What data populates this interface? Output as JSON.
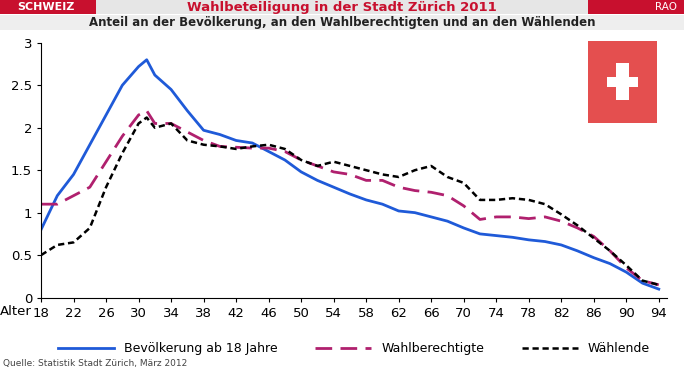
{
  "chart_data": {
    "type": "line",
    "header": "SCHWEIZ",
    "title": "Wahlbeteiligung in der Stadt Zürich 2011",
    "credit": "RAO",
    "subtitle": "Anteil an der Bevölkerung, an den Wahlberechtigten und an den Wählenden",
    "source": "Quelle: Statistik Stadt Zürich, März 2012",
    "x_label": "Alter",
    "x": [
      18,
      20,
      22,
      24,
      26,
      28,
      30,
      31,
      32,
      34,
      36,
      38,
      40,
      42,
      44,
      46,
      48,
      50,
      52,
      54,
      56,
      58,
      60,
      62,
      64,
      66,
      68,
      70,
      72,
      74,
      76,
      78,
      80,
      82,
      84,
      86,
      88,
      90,
      92,
      94
    ],
    "series": [
      {
        "name": "Bevölkerung ab 18 Jahre",
        "color": "#1f5ad8",
        "line_style": "solid",
        "values": [
          0.8,
          1.2,
          1.45,
          1.8,
          2.15,
          2.5,
          2.72,
          2.8,
          2.62,
          2.45,
          2.2,
          1.97,
          1.92,
          1.85,
          1.82,
          1.72,
          1.62,
          1.48,
          1.38,
          1.3,
          1.22,
          1.15,
          1.1,
          1.02,
          1.0,
          0.95,
          0.9,
          0.82,
          0.75,
          0.73,
          0.71,
          0.68,
          0.66,
          0.62,
          0.55,
          0.47,
          0.4,
          0.3,
          0.17,
          0.1
        ]
      },
      {
        "name": "Wahlberechtigte",
        "color": "#b0206e",
        "line_style": "dashed",
        "values": [
          1.1,
          1.1,
          1.2,
          1.3,
          1.6,
          1.9,
          2.15,
          2.2,
          2.05,
          2.05,
          1.95,
          1.85,
          1.78,
          1.77,
          1.76,
          1.76,
          1.72,
          1.62,
          1.55,
          1.48,
          1.45,
          1.38,
          1.38,
          1.3,
          1.26,
          1.24,
          1.2,
          1.08,
          0.92,
          0.95,
          0.95,
          0.93,
          0.95,
          0.9,
          0.82,
          0.72,
          0.55,
          0.35,
          0.2,
          0.15
        ]
      },
      {
        "name": "Wählende",
        "color": "#000000",
        "line_style": "dotted",
        "values": [
          0.5,
          0.62,
          0.65,
          0.82,
          1.3,
          1.7,
          2.05,
          2.12,
          2.0,
          2.05,
          1.85,
          1.8,
          1.78,
          1.75,
          1.78,
          1.8,
          1.75,
          1.62,
          1.55,
          1.6,
          1.55,
          1.5,
          1.45,
          1.42,
          1.5,
          1.55,
          1.42,
          1.35,
          1.15,
          1.15,
          1.17,
          1.15,
          1.1,
          0.98,
          0.85,
          0.7,
          0.55,
          0.38,
          0.2,
          0.15
        ]
      }
    ],
    "xlim": [
      18,
      95
    ],
    "xticks": [
      18,
      22,
      26,
      30,
      34,
      38,
      42,
      46,
      50,
      54,
      58,
      62,
      66,
      70,
      74,
      78,
      82,
      86,
      90,
      94
    ],
    "ylim": [
      0,
      3
    ],
    "yticks": [
      0,
      0.5,
      1,
      1.5,
      2,
      2.5,
      3
    ],
    "grid": false,
    "legend": "lower center"
  }
}
